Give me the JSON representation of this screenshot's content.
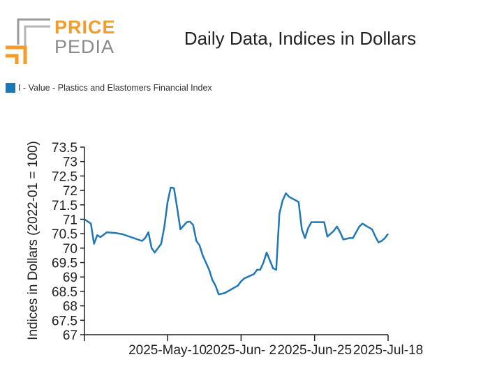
{
  "logo": {
    "word1": "PRICE",
    "word2": "PEDIA"
  },
  "chart_data": {
    "type": "line",
    "title": "Daily Data, Indices in Dollars",
    "xlabel": "",
    "ylabel": "Indices in Dollars (2022-01 = 100)",
    "ylim": [
      67,
      73.5
    ],
    "yticks": [
      "73.5",
      "73",
      "72.5",
      "72",
      "71.5",
      "71",
      "70.5",
      "70",
      "69.5",
      "69",
      "68.5",
      "68",
      "67.5",
      "67"
    ],
    "xlim": [
      "2025-04-14",
      "2025-07-18"
    ],
    "xticks": [
      {
        "date": "2025-05-10",
        "label": "2025-May-10"
      },
      {
        "date": "2025-06-02",
        "label": "2025-Jun- 2"
      },
      {
        "date": "2025-06-25",
        "label": "2025-Jun-25"
      },
      {
        "date": "2025-07-18",
        "label": "2025-Jul-18"
      }
    ],
    "grid": false,
    "legend_position": "top-left",
    "series": [
      {
        "name": "I - Value - Plastics and Elastomers Financial Index",
        "color": "#1f77b4",
        "x": [
          "2025-04-14",
          "2025-04-16",
          "2025-04-17",
          "2025-04-18",
          "2025-04-19",
          "2025-04-21",
          "2025-04-24",
          "2025-04-25",
          "2025-04-26",
          "2025-05-02",
          "2025-05-03",
          "2025-05-04",
          "2025-05-05",
          "2025-05-06",
          "2025-05-08",
          "2025-05-09",
          "2025-05-10",
          "2025-05-11",
          "2025-05-12",
          "2025-05-13",
          "2025-05-14",
          "2025-05-16",
          "2025-05-17",
          "2025-05-18",
          "2025-05-19",
          "2025-05-20",
          "2025-05-21",
          "2025-05-23",
          "2025-05-24",
          "2025-05-25",
          "2025-05-26",
          "2025-05-27",
          "2025-05-28",
          "2025-06-01",
          "2025-06-02",
          "2025-06-03",
          "2025-06-04",
          "2025-06-06",
          "2025-06-07",
          "2025-06-08",
          "2025-06-09",
          "2025-06-10",
          "2025-06-12",
          "2025-06-13",
          "2025-06-14",
          "2025-06-15",
          "2025-06-16",
          "2025-06-17",
          "2025-06-20",
          "2025-06-21",
          "2025-06-22",
          "2025-06-23",
          "2025-06-24",
          "2025-06-26",
          "2025-06-28",
          "2025-06-29",
          "2025-07-01",
          "2025-07-02",
          "2025-07-03",
          "2025-07-04",
          "2025-07-06",
          "2025-07-07",
          "2025-07-09",
          "2025-07-10",
          "2025-07-11",
          "2025-07-13",
          "2025-07-14",
          "2025-07-15",
          "2025-07-16",
          "2025-07-17",
          "2025-07-18"
        ],
        "y": [
          71.0,
          70.85,
          70.15,
          70.45,
          70.38,
          70.55,
          70.52,
          70.5,
          70.48,
          70.25,
          70.35,
          70.55,
          70.0,
          69.85,
          70.15,
          70.75,
          71.6,
          72.1,
          72.08,
          71.4,
          70.65,
          70.9,
          70.92,
          70.8,
          70.25,
          70.1,
          69.75,
          69.25,
          68.9,
          68.7,
          68.4,
          68.42,
          68.45,
          68.7,
          68.85,
          68.95,
          69.0,
          69.1,
          69.25,
          69.25,
          69.5,
          69.85,
          69.3,
          69.25,
          71.2,
          71.65,
          71.9,
          71.78,
          71.6,
          70.65,
          70.35,
          70.7,
          70.9,
          70.9,
          70.9,
          70.4,
          70.6,
          70.75,
          70.55,
          70.3,
          70.35,
          70.35,
          70.75,
          70.85,
          70.78,
          70.65,
          70.4,
          70.2,
          70.25,
          70.35,
          70.5
        ]
      }
    ]
  }
}
